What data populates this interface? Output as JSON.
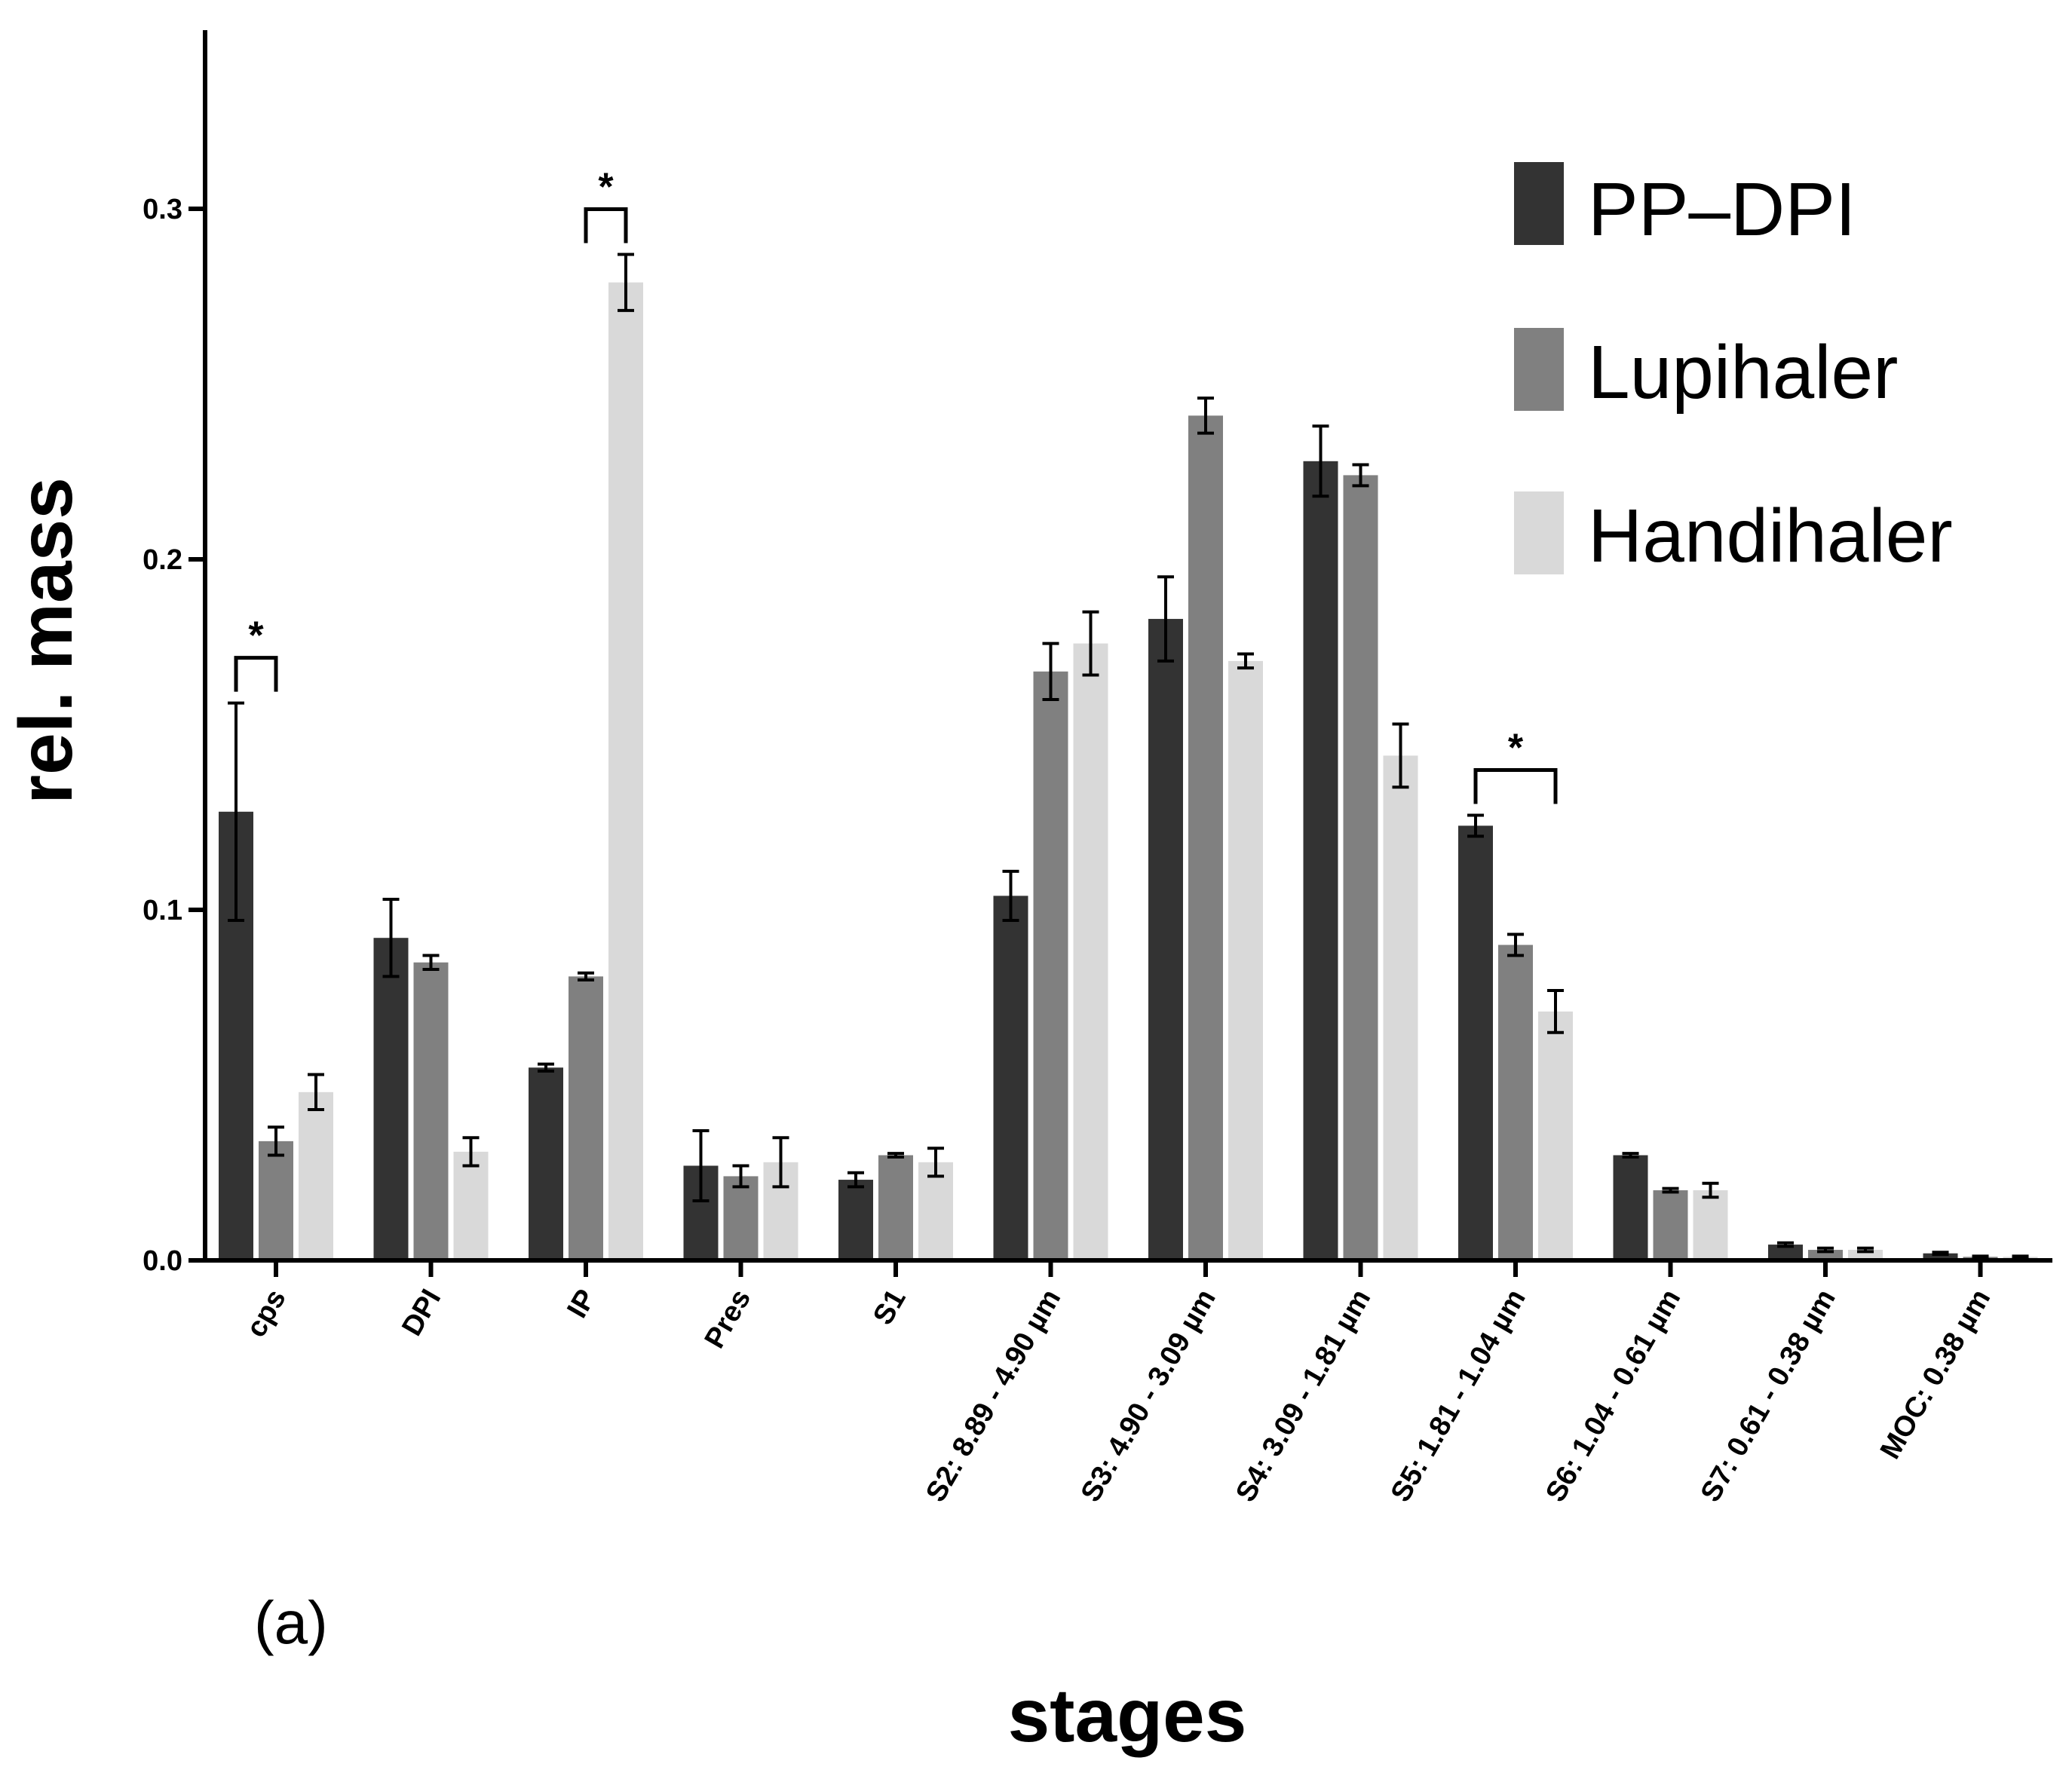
{
  "chart_data": {
    "type": "bar",
    "title": "",
    "panel_label": "(a)",
    "xlabel": "stages",
    "ylabel": "rel. mass",
    "ylim": [
      0,
      0.35
    ],
    "yticks": [
      0.0,
      0.1,
      0.2,
      0.3
    ],
    "ytick_labels": [
      "0.0",
      "0.1",
      "0.2",
      "0.3"
    ],
    "grid": false,
    "legend_position": "top-right",
    "categories": [
      "cps",
      "DPI",
      "IP",
      "Pres",
      "S1",
      "S2: 8.89 - 4.90 µm",
      "S3: 4.90 - 3.09 µm",
      "S4: 3.09 - 1.81 µm",
      "S5: 1.81 - 1.04 µm",
      "S6: 1.04 - 0.61 µm",
      "S7: 0.61 - 0.38 µm",
      "MOC: 0.38 µm"
    ],
    "series": [
      {
        "name": "PP–DPI",
        "color": "#333333",
        "values": [
          0.128,
          0.092,
          0.055,
          0.027,
          0.023,
          0.104,
          0.183,
          0.228,
          0.124,
          0.03,
          0.0045,
          0.002
        ],
        "errors": [
          0.031,
          0.011,
          0.001,
          0.01,
          0.002,
          0.007,
          0.012,
          0.01,
          0.003,
          0.0005,
          0.0005,
          0.0003
        ]
      },
      {
        "name": "Lupihaler",
        "color": "#808080",
        "values": [
          0.034,
          0.085,
          0.081,
          0.024,
          0.03,
          0.168,
          0.241,
          0.224,
          0.09,
          0.02,
          0.003,
          0.001
        ],
        "errors": [
          0.004,
          0.002,
          0.001,
          0.003,
          0.0005,
          0.008,
          0.005,
          0.003,
          0.003,
          0.0005,
          0.0005,
          0.0002
        ]
      },
      {
        "name": "Handihaler",
        "color": "#d9d9d9",
        "values": [
          0.048,
          0.031,
          0.279,
          0.028,
          0.028,
          0.176,
          0.171,
          0.144,
          0.071,
          0.02,
          0.003,
          0.001
        ],
        "errors": [
          0.005,
          0.004,
          0.008,
          0.007,
          0.004,
          0.009,
          0.002,
          0.009,
          0.006,
          0.002,
          0.0005,
          0.0002
        ]
      }
    ],
    "significance": [
      {
        "category": "cps",
        "from_series": 0,
        "to_series": 1,
        "label": "*"
      },
      {
        "category": "IP",
        "from_series": 1,
        "to_series": 2,
        "label": "*"
      },
      {
        "category": "S5: 1.81 - 1.04 µm",
        "from_series": 0,
        "to_series": 2,
        "label": "*"
      }
    ]
  }
}
